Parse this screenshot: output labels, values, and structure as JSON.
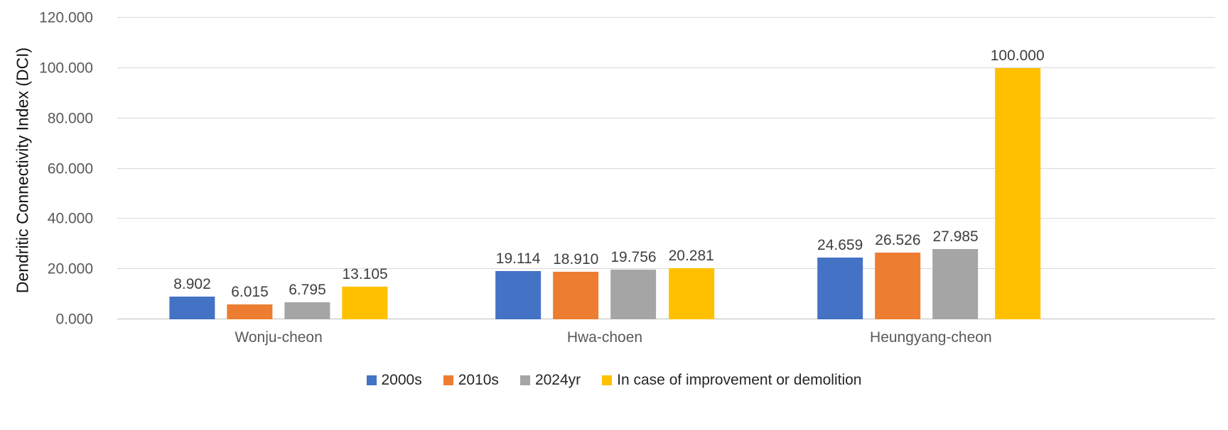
{
  "chart_data": {
    "type": "bar",
    "title": "",
    "xlabel": "",
    "ylabel": "Dendritic Connectivity Index (DCI)",
    "categories": [
      "Wonju-cheon",
      "Hwa-choen",
      "Heungyang-cheon"
    ],
    "series": [
      {
        "name": "2000s",
        "color": "#4472C4",
        "values": [
          8.902,
          19.114,
          24.659
        ]
      },
      {
        "name": "2010s",
        "color": "#ED7D31",
        "values": [
          6.015,
          18.91,
          26.526
        ]
      },
      {
        "name": "2024yr",
        "color": "#A5A5A5",
        "values": [
          6.795,
          19.756,
          27.985
        ]
      },
      {
        "name": "In case of improvement or demolition",
        "color": "#FFC000",
        "values": [
          13.105,
          20.281,
          100.0
        ]
      }
    ],
    "y_ticks": [
      "0.000",
      "20.000",
      "40.000",
      "60.000",
      "80.000",
      "100.000",
      "120.000"
    ],
    "ylim": [
      0,
      120
    ],
    "grid": true,
    "legend_position": "bottom",
    "value_label_decimals": 3
  },
  "colors": {
    "background": "#FFFFFF",
    "gridline": "#D9D9D9",
    "axis_line": "#BFBFBF",
    "tick_text": "#595959",
    "value_label_text": "#3F3F3F",
    "axis_title_text": "#111111"
  }
}
